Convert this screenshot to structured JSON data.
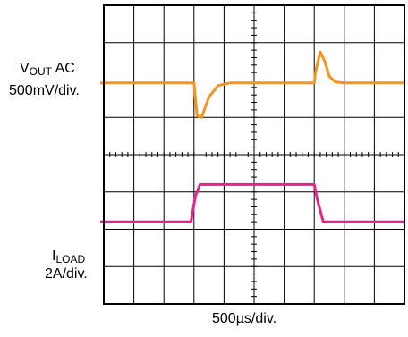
{
  "chart_data": {
    "type": "line",
    "title": "",
    "xlabel": "500µs/div.",
    "grid": true,
    "x_divisions": 10,
    "y_divisions": 8,
    "x_units_per_div": "500µs",
    "series": [
      {
        "name_main": "V",
        "name_sub": "OUT",
        "name_suffix": " AC",
        "scale": "500mV/div.",
        "color": "#f7931e",
        "x": [
          0,
          1,
          2,
          2.6,
          3.0,
          3.1,
          3.25,
          3.5,
          3.8,
          4.2,
          5,
          6,
          7,
          7.05,
          7.2,
          7.35,
          7.5,
          7.7,
          8.0,
          8.5,
          9,
          10
        ],
        "y": [
          1.92,
          1.92,
          1.92,
          1.92,
          1.92,
          1.05,
          1.0,
          1.55,
          1.85,
          1.92,
          1.92,
          1.92,
          1.92,
          2.25,
          2.75,
          2.5,
          2.1,
          1.95,
          1.92,
          1.92,
          1.92,
          1.92
        ]
      },
      {
        "name_main": "I",
        "name_sub": "LOAD",
        "name_suffix": "",
        "scale": "2A/div.",
        "color": "#e5258a",
        "x": [
          0,
          1,
          2,
          2.9,
          3.05,
          3.2,
          4,
          5,
          6,
          7.0,
          7.1,
          7.3,
          8,
          9,
          10
        ],
        "y": [
          -1.8,
          -1.8,
          -1.8,
          -1.8,
          -1.1,
          -0.8,
          -0.8,
          -0.8,
          -0.8,
          -0.8,
          -1.2,
          -1.8,
          -1.8,
          -1.8,
          -1.8
        ]
      }
    ]
  }
}
